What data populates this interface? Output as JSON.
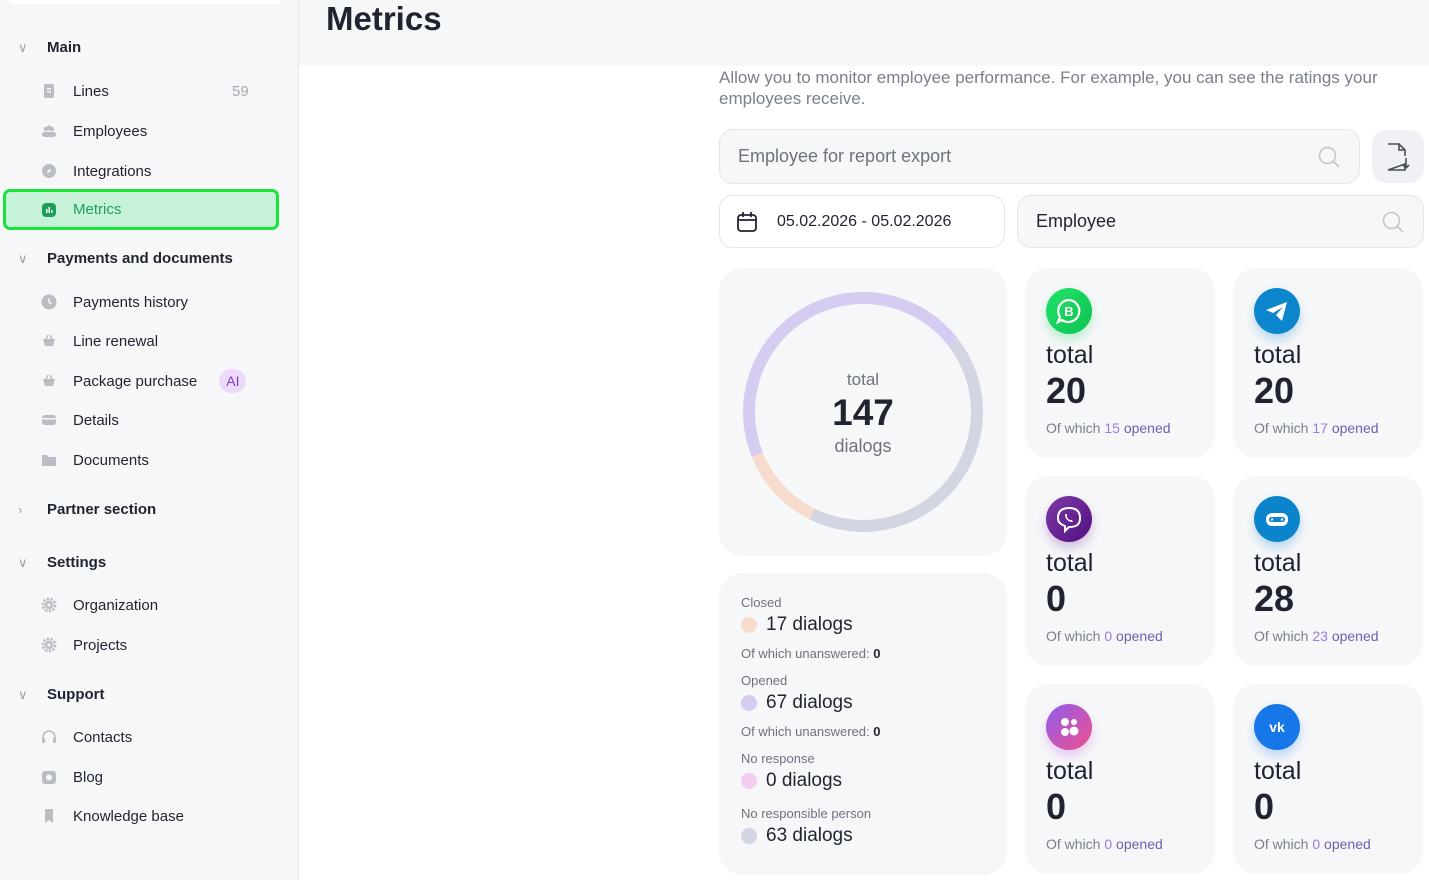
{
  "sidebar": {
    "sections": [
      {
        "label": "Main",
        "expanded": true,
        "items": [
          {
            "label": "Lines",
            "count": "59"
          },
          {
            "label": "Employees"
          },
          {
            "label": "Integrations"
          },
          {
            "label": "Metrics",
            "active": true
          }
        ]
      },
      {
        "label": "Payments and documents",
        "expanded": true,
        "items": [
          {
            "label": "Payments history"
          },
          {
            "label": "Line renewal"
          },
          {
            "label": "Package purchase",
            "badge": "AI"
          },
          {
            "label": "Details"
          },
          {
            "label": "Documents"
          }
        ]
      },
      {
        "label": "Partner section",
        "expanded": false
      },
      {
        "label": "Settings",
        "expanded": true,
        "items": [
          {
            "label": "Organization"
          },
          {
            "label": "Projects"
          }
        ]
      },
      {
        "label": "Support",
        "expanded": true,
        "items": [
          {
            "label": "Contacts"
          },
          {
            "label": "Blog"
          },
          {
            "label": "Knowledge base"
          }
        ]
      }
    ]
  },
  "header": {
    "title": "Metrics"
  },
  "description": "Allow you to monitor employee performance. For example, you can see the ratings your employees receive.",
  "export_search": {
    "placeholder": "Employee for report export"
  },
  "date_range": "05.02.2026 - 05.02.2026",
  "employee_filter": {
    "value": "Employee"
  },
  "summary": {
    "total_label": "total",
    "total": "147",
    "unit": "dialogs"
  },
  "chart_data": {
    "type": "pie",
    "title": "total 147 dialogs",
    "categories": [
      "Closed",
      "Opened",
      "No response",
      "No responsible person"
    ],
    "values": [
      17,
      67,
      0,
      63
    ],
    "colors": [
      "#f7dccd",
      "#d6cbf1",
      "#f5cdee",
      "#d1d6e2"
    ]
  },
  "legend": [
    {
      "label": "Closed",
      "value": "17 dialogs",
      "sub": "Of which unanswered:",
      "sub_value": "0",
      "color": "#f7dccd"
    },
    {
      "label": "Opened",
      "value": "67 dialogs",
      "sub": "Of which unanswered:",
      "sub_value": "0",
      "color": "#d6cbf1"
    },
    {
      "label": "No response",
      "value": "0 dialogs",
      "color": "#f5cdee"
    },
    {
      "label": "No responsible person",
      "value": "63 dialogs",
      "color": "#d1d6e2"
    }
  ],
  "channels": [
    {
      "icon": "whatsapp-business",
      "total_label": "total",
      "total": "20",
      "prefix": "Of which",
      "opened": "15",
      "suffix": "opened",
      "color": "#12d45a"
    },
    {
      "icon": "telegram",
      "total_label": "total",
      "total": "20",
      "prefix": "Of which",
      "opened": "17",
      "suffix": "opened",
      "color": "#1488d0"
    },
    {
      "icon": "viber",
      "total_label": "total",
      "total": "0",
      "prefix": "Of which",
      "opened": "0",
      "suffix": "opened",
      "color": "#6a2a9a"
    },
    {
      "icon": "bot",
      "total_label": "total",
      "total": "28",
      "prefix": "Of which",
      "opened": "23",
      "suffix": "opened",
      "color": "#0c84cc"
    },
    {
      "icon": "messenger",
      "total_label": "total",
      "total": "0",
      "prefix": "Of which",
      "opened": "0",
      "suffix": "opened",
      "color": "#c04cd8"
    },
    {
      "icon": "vk",
      "total_label": "total",
      "total": "0",
      "prefix": "Of which",
      "opened": "0",
      "suffix": "opened",
      "color": "#1677e8"
    }
  ]
}
